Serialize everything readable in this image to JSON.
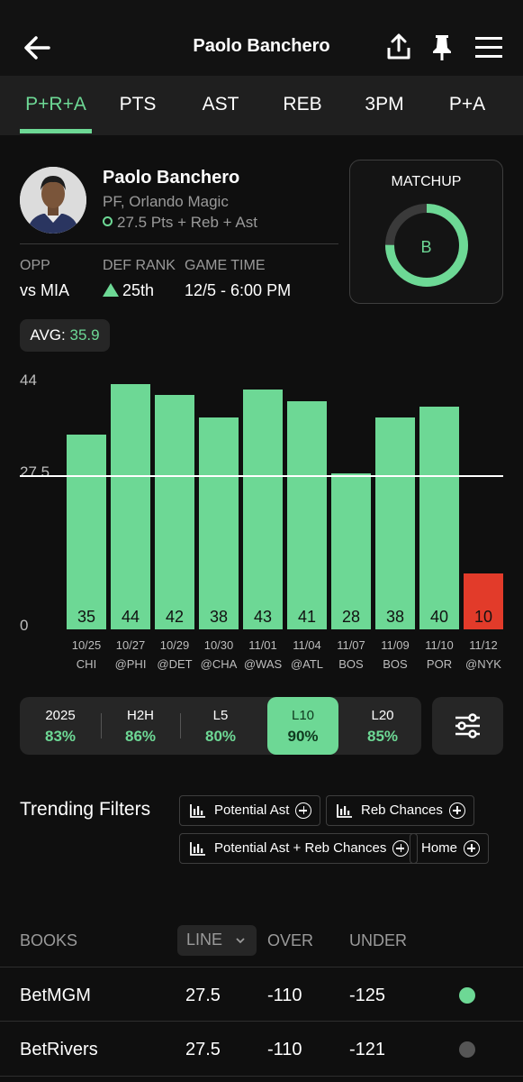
{
  "header": {
    "title": "Paolo Banchero"
  },
  "tabs": [
    "P+R+A",
    "PTS",
    "AST",
    "REB",
    "3PM",
    "P+A"
  ],
  "player": {
    "name": "Paolo Banchero",
    "position_team": "PF, Orlando Magic",
    "line_text": "27.5 Pts + Reb + Ast",
    "opp_label": "OPP",
    "opp_value": "vs MIA",
    "def_rank_label": "DEF RANK",
    "def_rank_value": "25th",
    "game_time_label": "GAME TIME",
    "game_time_value": "12/5 - 6:00 PM"
  },
  "matchup": {
    "label": "MATCHUP",
    "grade": "B",
    "ring_fraction": 0.75,
    "ring_color": "#6dd895"
  },
  "avg": {
    "label": "AVG:",
    "value": "35.9"
  },
  "chart_data": {
    "type": "bar",
    "y_ticks": [
      "44",
      "27.5",
      "0"
    ],
    "ylim": [
      0,
      44
    ],
    "reference_line": 27.5,
    "categories": [
      "10/25",
      "10/27",
      "10/29",
      "10/30",
      "11/01",
      "11/04",
      "11/07",
      "11/09",
      "11/10",
      "11/12"
    ],
    "opponents": [
      "CHI",
      "@PHI",
      "@DET",
      "@CHA",
      "@WAS",
      "@ATL",
      "BOS",
      "BOS",
      "POR",
      "@NYK"
    ],
    "values": [
      35,
      44,
      42,
      38,
      43,
      41,
      28,
      38,
      40,
      10
    ],
    "hit_color": "#6dd895",
    "miss_color": "#e23b2a"
  },
  "ranges": [
    {
      "label": "2025",
      "pct": "83%"
    },
    {
      "label": "H2H",
      "pct": "86%"
    },
    {
      "label": "L5",
      "pct": "80%"
    },
    {
      "label": "L10",
      "pct": "90%"
    },
    {
      "label": "L20",
      "pct": "85%"
    }
  ],
  "trending": {
    "title": "Trending Filters",
    "chips": [
      "Potential Ast",
      "Reb Chances",
      "Potential Ast + Reb Chances",
      "Home"
    ]
  },
  "books": {
    "headers": {
      "books": "BOOKS",
      "line": "LINE",
      "over": "OVER",
      "under": "UNDER"
    },
    "rows": [
      {
        "book": "BetMGM",
        "line": "27.5",
        "over": "-110",
        "under": "-125",
        "dot_color": "#6dd895"
      },
      {
        "book": "BetRivers",
        "line": "27.5",
        "over": "-110",
        "under": "-121",
        "dot_color": "#555555"
      }
    ]
  }
}
